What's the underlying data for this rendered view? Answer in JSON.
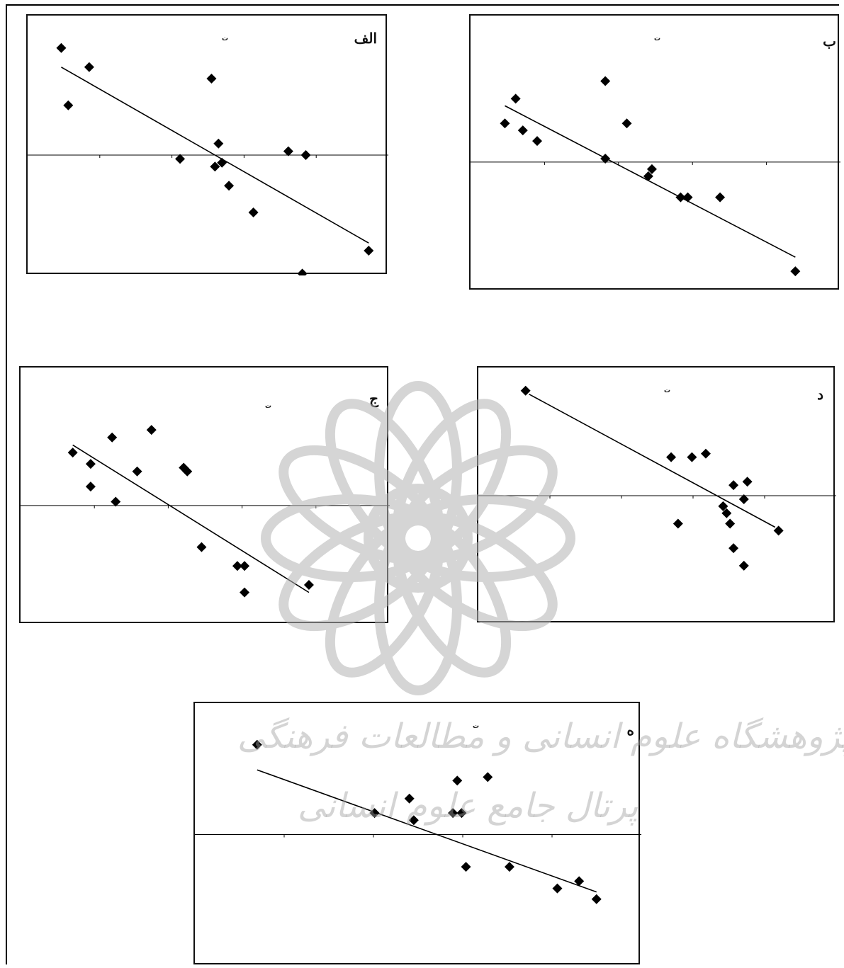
{
  "page": {
    "watermark_line1": "پژوهشگاه علوم انسانی و مطالعات فرهنگی",
    "watermark_line2": "پرتال جامع علوم انسانی"
  },
  "colors": {
    "marker": "#000000",
    "line": "#000000",
    "axis": "#000000",
    "watermark": "#b4b4b4"
  },
  "chart_data": [
    {
      "type": "scatter",
      "panel_label": "الف",
      "note": "ت",
      "xlim": [
        0,
        10
      ],
      "ylim": [
        -3,
        3.5
      ],
      "points": [
        [
          0.8,
          2.8
        ],
        [
          1.0,
          1.3
        ],
        [
          1.6,
          2.3
        ],
        [
          4.2,
          -0.1
        ],
        [
          5.1,
          2.0
        ],
        [
          5.2,
          -0.3
        ],
        [
          5.3,
          0.3
        ],
        [
          5.4,
          -0.2
        ],
        [
          5.6,
          -0.8
        ],
        [
          6.3,
          -1.5
        ],
        [
          7.3,
          0.1
        ],
        [
          7.7,
          -3.1
        ],
        [
          7.8,
          0.0
        ],
        [
          9.6,
          -2.5
        ]
      ],
      "trendline": [
        [
          0.8,
          2.3
        ],
        [
          9.6,
          -2.3
        ]
      ],
      "zero_line": 0
    },
    {
      "type": "scatter",
      "panel_label": "ب",
      "note": "ت",
      "xlim": [
        0,
        10
      ],
      "ylim": [
        -3.5,
        4
      ],
      "points": [
        [
          0.8,
          1.1
        ],
        [
          1.1,
          1.8
        ],
        [
          1.3,
          0.9
        ],
        [
          1.7,
          0.6
        ],
        [
          3.6,
          0.1
        ],
        [
          3.6,
          2.3
        ],
        [
          4.2,
          1.1
        ],
        [
          4.8,
          -0.4
        ],
        [
          4.9,
          -0.2
        ],
        [
          5.7,
          -1.0
        ],
        [
          5.9,
          -1.0
        ],
        [
          6.8,
          -1.0
        ],
        [
          8.9,
          -3.1
        ]
      ],
      "trendline": [
        [
          0.8,
          1.6
        ],
        [
          8.9,
          -2.7
        ]
      ],
      "zero_line": 0
    },
    {
      "type": "scatter",
      "panel_label": "ج",
      "note": "ت",
      "xlim": [
        0,
        10
      ],
      "ylim": [
        -3,
        3.5
      ],
      "points": [
        [
          1.3,
          1.4
        ],
        [
          1.8,
          1.1
        ],
        [
          1.8,
          0.5
        ],
        [
          2.4,
          1.8
        ],
        [
          2.5,
          0.1
        ],
        [
          3.1,
          0.9
        ],
        [
          3.5,
          2.0
        ],
        [
          4.4,
          1.0
        ],
        [
          4.5,
          0.9
        ],
        [
          4.9,
          -1.1
        ],
        [
          5.9,
          -1.6
        ],
        [
          6.1,
          -1.6
        ],
        [
          6.1,
          -2.3
        ],
        [
          7.9,
          -2.1
        ]
      ],
      "trendline": [
        [
          1.3,
          1.6
        ],
        [
          7.9,
          -2.3
        ]
      ],
      "zero_line": 0
    },
    {
      "type": "scatter",
      "panel_label": "د",
      "note": "ت",
      "xlim": [
        0,
        10
      ],
      "ylim": [
        -3.5,
        3.5
      ],
      "points": [
        [
          1.2,
          3.0
        ],
        [
          5.4,
          1.1
        ],
        [
          5.6,
          -0.8
        ],
        [
          6.0,
          1.1
        ],
        [
          6.4,
          1.2
        ],
        [
          6.9,
          -0.3
        ],
        [
          7.0,
          -0.5
        ],
        [
          7.1,
          -0.8
        ],
        [
          7.2,
          0.3
        ],
        [
          7.2,
          -1.5
        ],
        [
          7.5,
          -0.1
        ],
        [
          7.5,
          -2.0
        ],
        [
          7.6,
          0.4
        ],
        [
          8.5,
          -1.0
        ]
      ],
      "trendline": [
        [
          1.3,
          2.9
        ],
        [
          8.4,
          -0.9
        ]
      ],
      "zero_line": 0
    },
    {
      "type": "scatter",
      "panel_label": "ه",
      "note": "ت",
      "xlim": [
        0,
        10
      ],
      "ylim": [
        -3.5,
        3.5
      ],
      "points": [
        [
          1.3,
          2.5
        ],
        [
          4.0,
          0.6
        ],
        [
          4.8,
          1.0
        ],
        [
          4.9,
          0.4
        ],
        [
          5.8,
          0.6
        ],
        [
          5.9,
          1.5
        ],
        [
          6.0,
          0.6
        ],
        [
          6.1,
          -0.9
        ],
        [
          6.6,
          1.6
        ],
        [
          7.1,
          -0.9
        ],
        [
          8.2,
          -1.5
        ],
        [
          8.7,
          -1.3
        ],
        [
          9.1,
          -1.8
        ]
      ],
      "trendline": [
        [
          1.3,
          1.8
        ],
        [
          9.1,
          -1.6
        ]
      ],
      "zero_line": 0
    }
  ]
}
